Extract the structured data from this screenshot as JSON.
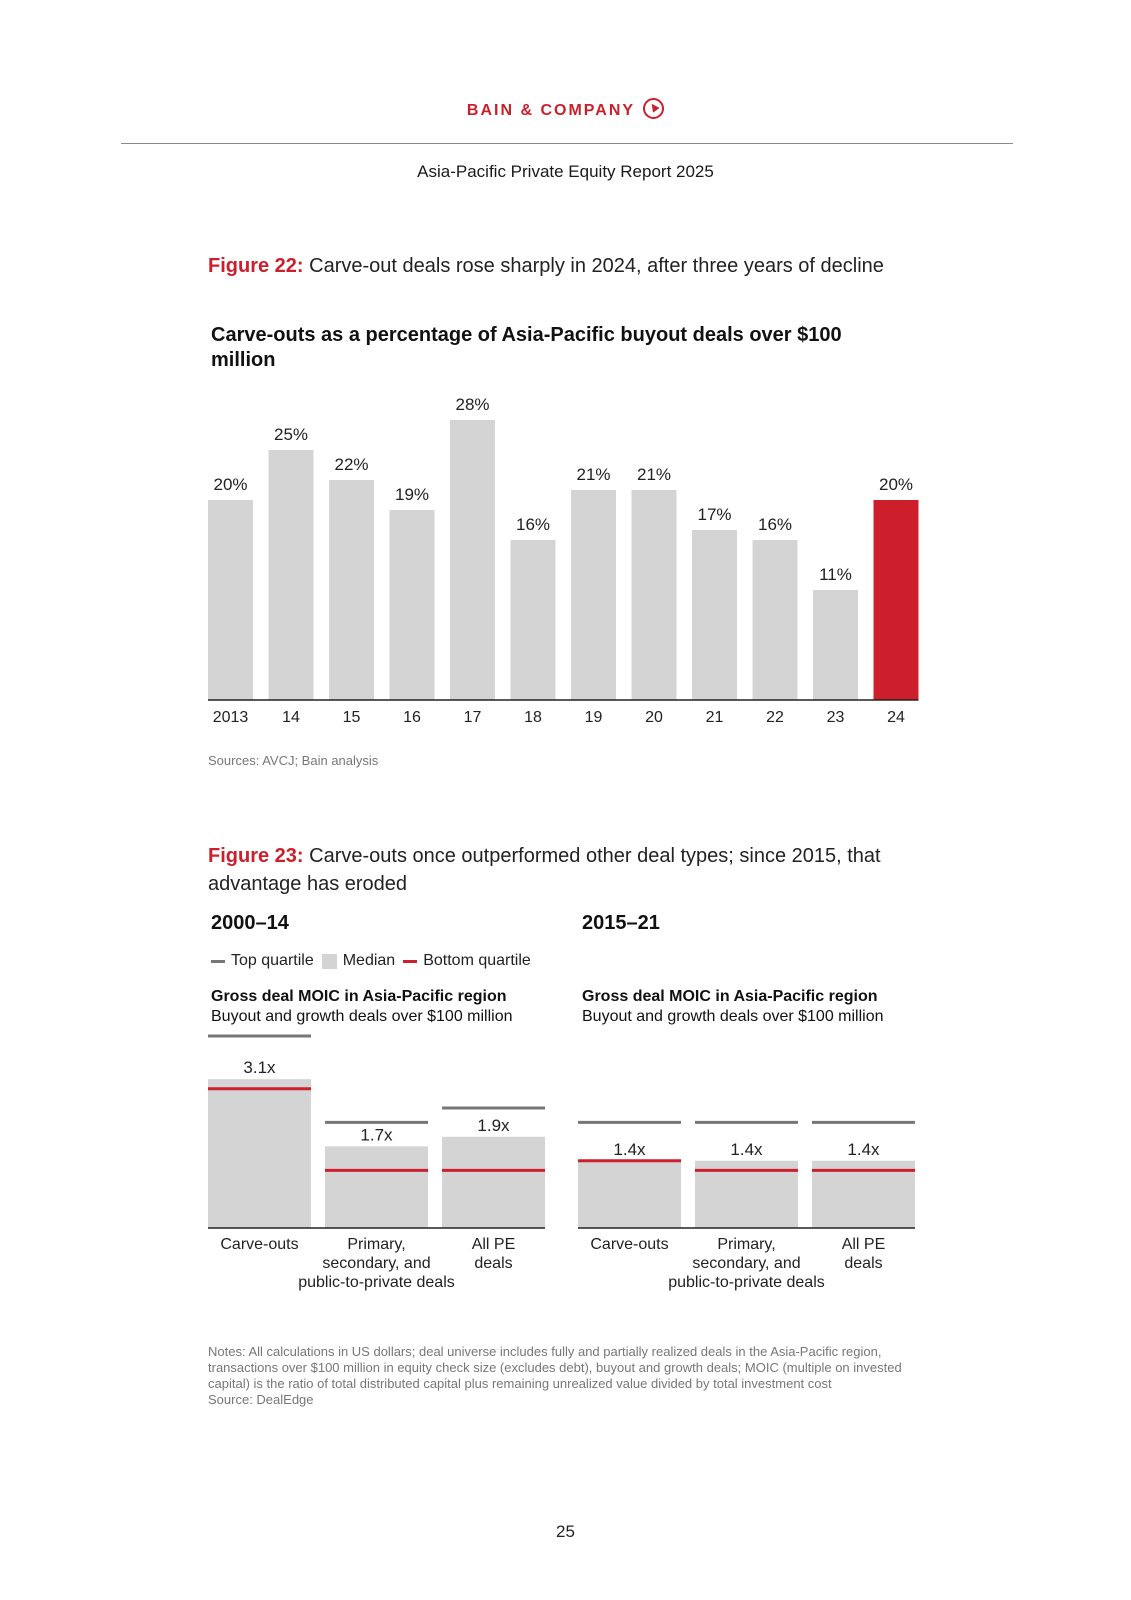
{
  "header": {
    "logo_text": "BAIN & COMPANY",
    "report_title": "Asia-Pacific Private Equity Report 2025"
  },
  "figure22": {
    "number": "Figure 22:",
    "caption": "Carve-out deals rose sharply in 2024, after three years of decline",
    "source": "Sources: AVCJ; Bain analysis"
  },
  "figure23": {
    "number": "Figure 23:",
    "caption": "Carve-outs once outperformed other deal types; since 2015, that advantage has eroded",
    "legend": {
      "top": "Top quartile",
      "median": "Median",
      "bottom": "Bottom quartile"
    },
    "notes": "Notes: All calculations in US dollars; deal universe includes fully and partially realized deals in the Asia-Pacific region, transactions over $100 million in equity check size (excludes debt), buyout and growth deals; MOIC (multiple on invested capital) is the ratio of total distributed capital plus remaining unrealized value divided by total investment cost",
    "source": "Source: DealEdge"
  },
  "colors": {
    "accent": "#cc1f2b",
    "bar_gray": "#d4d4d4",
    "top_quartile": "#777777",
    "bottom_quartile": "#cc1f2b",
    "axis": "#222222"
  },
  "chart_data": [
    {
      "type": "bar",
      "title": "Carve-outs as a percentage of Asia-Pacific buyout deals over $100 million",
      "categories": [
        "2013",
        "14",
        "15",
        "16",
        "17",
        "18",
        "19",
        "20",
        "21",
        "22",
        "23",
        "24"
      ],
      "values": [
        20,
        25,
        22,
        19,
        28,
        16,
        21,
        21,
        17,
        16,
        11,
        20
      ],
      "labels": [
        "20%",
        "25%",
        "22%",
        "19%",
        "28%",
        "16%",
        "21%",
        "21%",
        "17%",
        "16%",
        "11%",
        "20%"
      ],
      "highlight": [
        "24"
      ],
      "ylim": [
        0,
        30
      ]
    },
    {
      "type": "bar",
      "title": "2000–14",
      "subtitle_bold": "Gross deal MOIC in Asia-Pacific region",
      "subtitle": "Buyout and growth deals over $100 million",
      "categories": [
        "Carve-outs",
        "Primary, secondary, and public-to-private deals",
        "All PE deals"
      ],
      "category_lines": [
        [
          "Carve-outs"
        ],
        [
          "Primary,",
          "secondary, and",
          "public-to-private deals"
        ],
        [
          "All PE",
          "deals"
        ]
      ],
      "median": [
        3.1,
        1.7,
        1.9
      ],
      "median_labels": [
        "3.1x",
        "1.7x",
        "1.9x"
      ],
      "top_quartile": [
        4.0,
        2.2,
        2.5
      ],
      "bottom_quartile": [
        2.9,
        1.2,
        1.2
      ],
      "ylim": [
        0,
        4.2
      ]
    },
    {
      "type": "bar",
      "title": "2015–21",
      "subtitle_bold": "Gross deal MOIC in Asia-Pacific region",
      "subtitle": "Buyout and growth deals over $100 million",
      "categories": [
        "Carve-outs",
        "Primary, secondary, and public-to-private deals",
        "All PE deals"
      ],
      "category_lines": [
        [
          "Carve-outs"
        ],
        [
          "Primary,",
          "secondary, and",
          "public-to-private deals"
        ],
        [
          "All PE",
          "deals"
        ]
      ],
      "median": [
        1.4,
        1.4,
        1.4
      ],
      "median_labels": [
        "1.4x",
        "1.4x",
        "1.4x"
      ],
      "top_quartile": [
        2.2,
        2.2,
        2.2
      ],
      "bottom_quartile": [
        1.4,
        1.2,
        1.2
      ],
      "ylim": [
        0,
        4.2
      ]
    }
  ],
  "page_number": "25"
}
